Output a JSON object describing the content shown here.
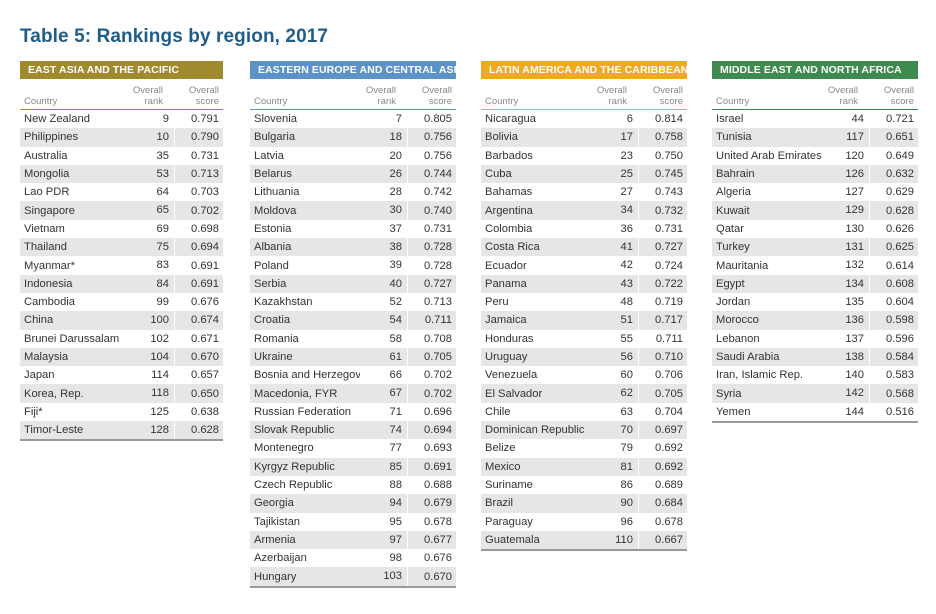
{
  "title": "Table 5: Rankings by region, 2017",
  "columns": {
    "country": "Country",
    "rank_line1": "Overall",
    "rank_line2": "rank",
    "score_line1": "Overall",
    "score_line2": "score"
  },
  "regions": [
    {
      "name": "EAST ASIA AND THE PACIFIC",
      "color": "#a08a2d",
      "rows": [
        [
          "New Zealand",
          "9",
          "0.791"
        ],
        [
          "Philippines",
          "10",
          "0.790"
        ],
        [
          "Australia",
          "35",
          "0.731"
        ],
        [
          "Mongolia",
          "53",
          "0.713"
        ],
        [
          "Lao PDR",
          "64",
          "0.703"
        ],
        [
          "Singapore",
          "65",
          "0.702"
        ],
        [
          "Vietnam",
          "69",
          "0.698"
        ],
        [
          "Thailand",
          "75",
          "0.694"
        ],
        [
          "Myanmar*",
          "83",
          "0.691"
        ],
        [
          "Indonesia",
          "84",
          "0.691"
        ],
        [
          "Cambodia",
          "99",
          "0.676"
        ],
        [
          "China",
          "100",
          "0.674"
        ],
        [
          "Brunei Darussalam",
          "102",
          "0.671"
        ],
        [
          "Malaysia",
          "104",
          "0.670"
        ],
        [
          "Japan",
          "114",
          "0.657"
        ],
        [
          "Korea, Rep.",
          "118",
          "0.650"
        ],
        [
          "Fiji*",
          "125",
          "0.638"
        ],
        [
          "Timor-Leste",
          "128",
          "0.628"
        ]
      ]
    },
    {
      "name": "EASTERN EUROPE AND CENTRAL ASIA",
      "color": "#5b93c9",
      "rows": [
        [
          "Slovenia",
          "7",
          "0.805"
        ],
        [
          "Bulgaria",
          "18",
          "0.756"
        ],
        [
          "Latvia",
          "20",
          "0.756"
        ],
        [
          "Belarus",
          "26",
          "0.744"
        ],
        [
          "Lithuania",
          "28",
          "0.742"
        ],
        [
          "Moldova",
          "30",
          "0.740"
        ],
        [
          "Estonia",
          "37",
          "0.731"
        ],
        [
          "Albania",
          "38",
          "0.728"
        ],
        [
          "Poland",
          "39",
          "0.728"
        ],
        [
          "Serbia",
          "40",
          "0.727"
        ],
        [
          "Kazakhstan",
          "52",
          "0.713"
        ],
        [
          "Croatia",
          "54",
          "0.711"
        ],
        [
          "Romania",
          "58",
          "0.708"
        ],
        [
          "Ukraine",
          "61",
          "0.705"
        ],
        [
          "Bosnia and Herzegovina",
          "66",
          "0.702"
        ],
        [
          "Macedonia, FYR",
          "67",
          "0.702"
        ],
        [
          "Russian Federation",
          "71",
          "0.696"
        ],
        [
          "Slovak Republic",
          "74",
          "0.694"
        ],
        [
          "Montenegro",
          "77",
          "0.693"
        ],
        [
          "Kyrgyz Republic",
          "85",
          "0.691"
        ],
        [
          "Czech Republic",
          "88",
          "0.688"
        ],
        [
          "Georgia",
          "94",
          "0.679"
        ],
        [
          "Tajikistan",
          "95",
          "0.678"
        ],
        [
          "Armenia",
          "97",
          "0.677"
        ],
        [
          "Azerbaijan",
          "98",
          "0.676"
        ],
        [
          "Hungary",
          "103",
          "0.670"
        ]
      ]
    },
    {
      "name": "LATIN AMERICA AND THE CARIBBEAN",
      "color": "#f2a922",
      "rows": [
        [
          "Nicaragua",
          "6",
          "0.814"
        ],
        [
          "Bolivia",
          "17",
          "0.758"
        ],
        [
          "Barbados",
          "23",
          "0.750"
        ],
        [
          "Cuba",
          "25",
          "0.745"
        ],
        [
          "Bahamas",
          "27",
          "0.743"
        ],
        [
          "Argentina",
          "34",
          "0.732"
        ],
        [
          "Colombia",
          "36",
          "0.731"
        ],
        [
          "Costa Rica",
          "41",
          "0.727"
        ],
        [
          "Ecuador",
          "42",
          "0.724"
        ],
        [
          "Panama",
          "43",
          "0.722"
        ],
        [
          "Peru",
          "48",
          "0.719"
        ],
        [
          "Jamaica",
          "51",
          "0.717"
        ],
        [
          "Honduras",
          "55",
          "0.711"
        ],
        [
          "Uruguay",
          "56",
          "0.710"
        ],
        [
          "Venezuela",
          "60",
          "0.706"
        ],
        [
          "El Salvador",
          "62",
          "0.705"
        ],
        [
          "Chile",
          "63",
          "0.704"
        ],
        [
          "Dominican Republic",
          "70",
          "0.697"
        ],
        [
          "Belize",
          "79",
          "0.692"
        ],
        [
          "Mexico",
          "81",
          "0.692"
        ],
        [
          "Suriname",
          "86",
          "0.689"
        ],
        [
          "Brazil",
          "90",
          "0.684"
        ],
        [
          "Paraguay",
          "96",
          "0.678"
        ],
        [
          "Guatemala",
          "110",
          "0.667"
        ]
      ]
    },
    {
      "name": "MIDDLE EAST AND NORTH AFRICA",
      "color": "#3f8a4e",
      "rows": [
        [
          "Israel",
          "44",
          "0.721"
        ],
        [
          "Tunisia",
          "117",
          "0.651"
        ],
        [
          "United Arab Emirates",
          "120",
          "0.649"
        ],
        [
          "Bahrain",
          "126",
          "0.632"
        ],
        [
          "Algeria",
          "127",
          "0.629"
        ],
        [
          "Kuwait",
          "129",
          "0.628"
        ],
        [
          "Qatar",
          "130",
          "0.626"
        ],
        [
          "Turkey",
          "131",
          "0.625"
        ],
        [
          "Mauritania",
          "132",
          "0.614"
        ],
        [
          "Egypt",
          "134",
          "0.608"
        ],
        [
          "Jordan",
          "135",
          "0.604"
        ],
        [
          "Morocco",
          "136",
          "0.598"
        ],
        [
          "Lebanon",
          "137",
          "0.596"
        ],
        [
          "Saudi Arabia",
          "138",
          "0.584"
        ],
        [
          "Iran, Islamic Rep.",
          "140",
          "0.583"
        ],
        [
          "Syria",
          "142",
          "0.568"
        ],
        [
          "Yemen",
          "144",
          "0.516"
        ]
      ]
    }
  ]
}
